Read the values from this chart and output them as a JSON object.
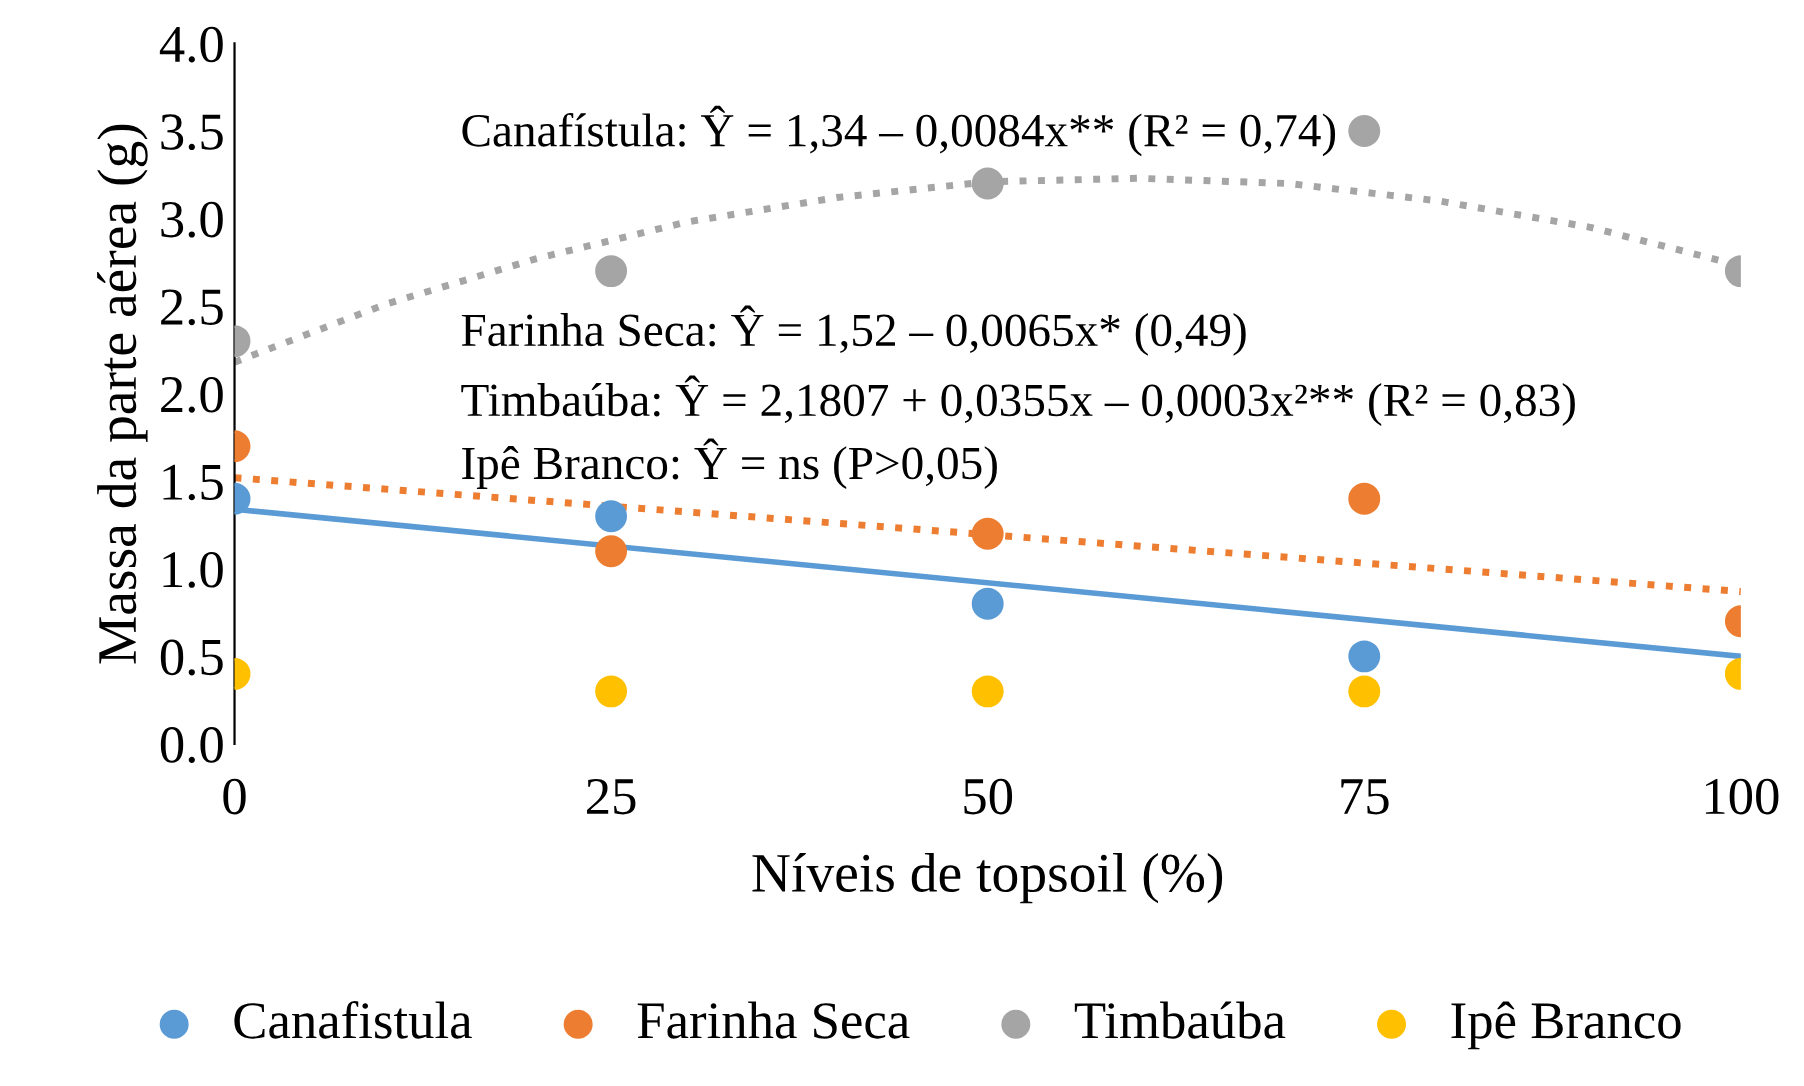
{
  "chart_data": {
    "type": "scatter",
    "xlabel": "Níveis de topsoil (%)",
    "ylabel": "Massa da parte aérea (g)",
    "x": [
      0,
      25,
      50,
      75,
      100
    ],
    "xlim": [
      0,
      100
    ],
    "xticks": [
      0,
      25,
      50,
      75,
      100
    ],
    "ylim": [
      0,
      4
    ],
    "yticks": [
      {
        "value": 0,
        "label": "0.0"
      },
      {
        "value": 0.5,
        "label": "0.5"
      },
      {
        "value": 1,
        "label": "1.0"
      },
      {
        "value": 1.5,
        "label": "1.5"
      },
      {
        "value": 2,
        "label": "2.0"
      },
      {
        "value": 2.5,
        "label": "2.5"
      },
      {
        "value": 3,
        "label": "3.0"
      },
      {
        "value": 3.5,
        "label": "3.5"
      },
      {
        "value": 4,
        "label": "4.0"
      }
    ],
    "grid": false,
    "legend": "bottom",
    "marker": "circle",
    "series": [
      {
        "type": "line",
        "color": "#5b9bd5",
        "line_style": "solid",
        "marker": "none",
        "x": [
          0,
          100
        ],
        "values": [
          1.34,
          0.5
        ]
      },
      {
        "type": "line",
        "color": "#ed7d31",
        "line_style": "dotted",
        "marker": "none",
        "x": [
          0,
          100
        ],
        "values": [
          1.52,
          0.87
        ]
      },
      {
        "type": "line",
        "color": "#a5a5a5",
        "line_style": "dotted",
        "marker": "none",
        "x": [
          0,
          10,
          20,
          30,
          40,
          50,
          60,
          70,
          80,
          90,
          100
        ],
        "values": [
          2.18,
          2.51,
          2.77,
          2.98,
          3.12,
          3.21,
          3.23,
          3.2,
          3.1,
          2.95,
          2.73
        ]
      },
      {
        "name": "Canafistula",
        "color": "#5b9bd5",
        "values": [
          1.4,
          1.3,
          0.8,
          0.5,
          null
        ]
      },
      {
        "name": "Farinha Seca",
        "color": "#ed7d31",
        "values": [
          1.7,
          1.1,
          1.2,
          1.4,
          0.7
        ]
      },
      {
        "name": "Timbaúba",
        "color": "#a5a5a5",
        "values": [
          2.3,
          2.7,
          3.2,
          3.5,
          2.7
        ]
      },
      {
        "name": "Ipê Branco",
        "color": "#ffc000",
        "values": [
          0.4,
          0.3,
          0.3,
          0.3,
          0.4
        ]
      }
    ],
    "annotations": [
      "Canafístula: Ŷ = 1,34 – 0,0084x** (R² = 0,74)",
      "Farinha Seca: Ŷ = 1,52 – 0,0065x* (0,49)",
      "Timbaúba: Ŷ = 2,1807 + 0,0355x – 0,0003x²** (R² = 0,83)",
      "Ipê Branco: Ŷ = ns (P>0,05)"
    ]
  }
}
